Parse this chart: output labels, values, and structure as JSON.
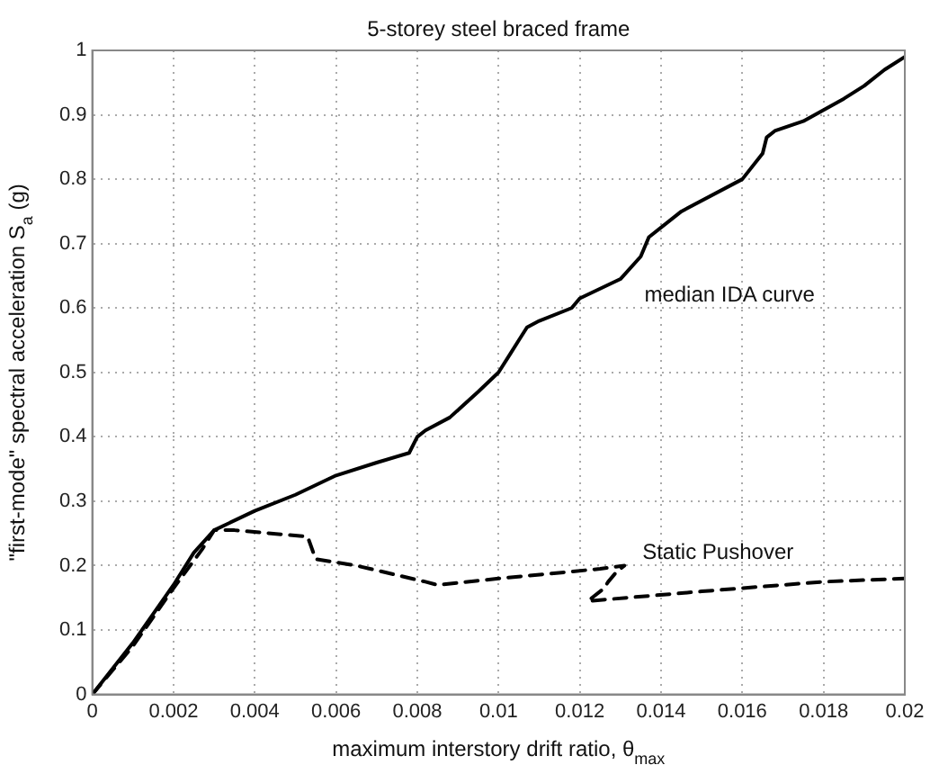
{
  "chart_data": {
    "type": "line",
    "title": "5-storey steel braced frame",
    "xlabel": "maximum interstory drift ratio, θ$_{max}$",
    "ylabel": "\"first-mode\" spectral acceleration S$_{a}$ (g)",
    "xlim": [
      0,
      0.02
    ],
    "xticks": [
      0,
      0.002,
      0.004,
      0.006,
      0.008,
      0.01,
      0.012,
      0.014,
      0.016,
      0.018,
      0.02
    ],
    "ylim": [
      0,
      1
    ],
    "yticks": [
      0,
      0.1,
      0.2,
      0.3,
      0.4,
      0.5,
      0.6,
      0.7,
      0.8,
      0.9,
      1
    ],
    "grid": true,
    "legend": false,
    "marker": "none",
    "series": [
      {
        "name": "median IDA curve",
        "color": "#000000",
        "line_style": "solid",
        "x": [
          0,
          0.001,
          0.002,
          0.0025,
          0.003,
          0.004,
          0.005,
          0.006,
          0.007,
          0.0078,
          0.008,
          0.0082,
          0.0088,
          0.0095,
          0.01,
          0.0103,
          0.0105,
          0.0107,
          0.011,
          0.0118,
          0.012,
          0.013,
          0.0135,
          0.0137,
          0.0145,
          0.016,
          0.0165,
          0.0166,
          0.0168,
          0.0175,
          0.0185,
          0.019,
          0.0195,
          0.02
        ],
        "values": [
          0,
          0.08,
          0.17,
          0.22,
          0.255,
          0.285,
          0.31,
          0.34,
          0.36,
          0.375,
          0.4,
          0.41,
          0.43,
          0.47,
          0.5,
          0.53,
          0.55,
          0.57,
          0.58,
          0.6,
          0.615,
          0.645,
          0.68,
          0.71,
          0.75,
          0.8,
          0.84,
          0.865,
          0.875,
          0.89,
          0.925,
          0.945,
          0.97,
          0.99
        ]
      },
      {
        "name": "Static Pushover",
        "color": "#000000",
        "line_style": "dashed",
        "x": [
          0,
          0.001,
          0.002,
          0.0027,
          0.003,
          0.0035,
          0.0053,
          0.0055,
          0.0065,
          0.0082,
          0.0085,
          0.01,
          0.0125,
          0.0131,
          0.0129,
          0.0127,
          0.0126,
          0.0122,
          0.015,
          0.018,
          0.02
        ],
        "values": [
          0,
          0.075,
          0.165,
          0.225,
          0.255,
          0.255,
          0.245,
          0.21,
          0.2,
          0.175,
          0.17,
          0.18,
          0.195,
          0.2,
          0.19,
          0.175,
          0.165,
          0.145,
          0.16,
          0.175,
          0.18
        ]
      }
    ]
  }
}
